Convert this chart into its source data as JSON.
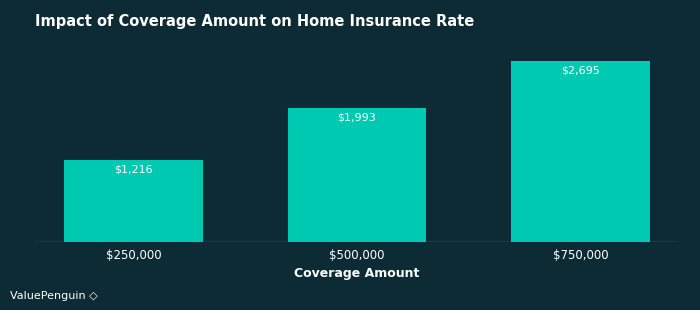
{
  "title": "Impact of Coverage Amount on Home Insurance Rate",
  "categories": [
    "$250,000",
    "$500,000",
    "$750,000"
  ],
  "values": [
    1216,
    1993,
    2695
  ],
  "bar_labels": [
    "$1,216",
    "$1,993",
    "$2,695"
  ],
  "bar_color": "#00C9B1",
  "background_color": "#0d2b35",
  "text_color": "#ffffff",
  "xlabel": "Coverage Amount",
  "ylabel": "",
  "ylim": [
    0,
    3050
  ],
  "title_fontsize": 10.5,
  "label_fontsize": 8.5,
  "bar_label_fontsize": 8,
  "axis_label_fontsize": 9,
  "watermark": "ValuePenguin",
  "bar_width": 0.62,
  "baseline_color": "#4a7080"
}
